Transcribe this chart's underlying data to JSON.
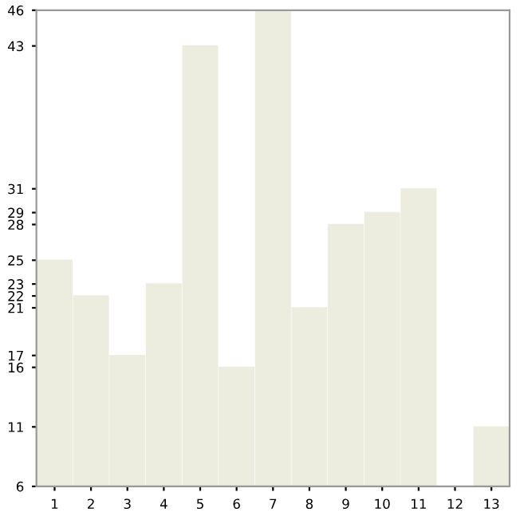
{
  "chart_data": {
    "type": "bar",
    "categories": [
      "1",
      "2",
      "3",
      "4",
      "5",
      "6",
      "7",
      "8",
      "9",
      "10",
      "11",
      "12",
      "13"
    ],
    "values": [
      25,
      22,
      17,
      23,
      43,
      16,
      46,
      21,
      28,
      29,
      31,
      6,
      11
    ],
    "color": "#ecedde",
    "ylim": [
      6,
      46
    ],
    "yticks": [
      6,
      11,
      16,
      17,
      21,
      22,
      23,
      25,
      28,
      29,
      31,
      43,
      46
    ],
    "grid": false
  }
}
